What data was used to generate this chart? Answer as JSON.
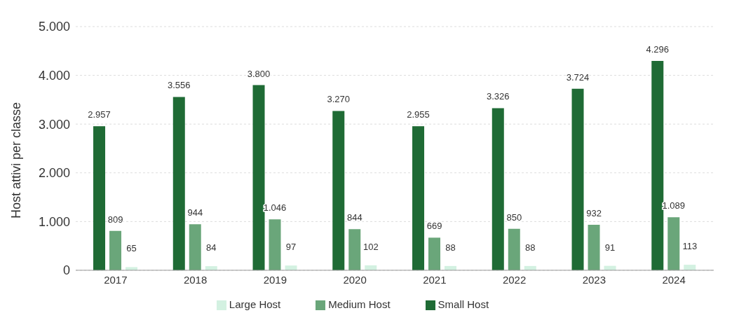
{
  "chart_data": {
    "type": "bar",
    "ylabel": "Host attivi per classe",
    "categories": [
      "2017",
      "2018",
      "2019",
      "2020",
      "2021",
      "2022",
      "2023",
      "2024"
    ],
    "series": [
      {
        "name": "Small Host",
        "color": "#1f6b35",
        "values": [
          2957,
          3556,
          3800,
          3270,
          2955,
          3326,
          3724,
          4296
        ],
        "value_labels": [
          "2.957",
          "3.556",
          "3.800",
          "3.270",
          "2.955",
          "3.326",
          "3.724",
          "4.296"
        ]
      },
      {
        "name": "Medium Host",
        "color": "#6aa67a",
        "values": [
          809,
          944,
          1046,
          844,
          669,
          850,
          932,
          1089
        ],
        "value_labels": [
          "809",
          "944",
          "1.046",
          "844",
          "669",
          "850",
          "932",
          "1.089"
        ]
      },
      {
        "name": "Large Host",
        "color": "#d3f1e1",
        "values": [
          65,
          84,
          97,
          102,
          88,
          88,
          91,
          113
        ],
        "value_labels": [
          "65",
          "84",
          "97",
          "102",
          "88",
          "88",
          "91",
          "113"
        ]
      }
    ],
    "ylim": [
      0,
      5000
    ],
    "yticks": [
      {
        "value": 0,
        "label": "0"
      },
      {
        "value": 1000,
        "label": "1.000"
      },
      {
        "value": 2000,
        "label": "2.000"
      },
      {
        "value": 3000,
        "label": "3.000"
      },
      {
        "value": 4000,
        "label": "4.000"
      },
      {
        "value": 5000,
        "label": "5.000"
      }
    ],
    "grid": "y",
    "legend": "bottom"
  }
}
